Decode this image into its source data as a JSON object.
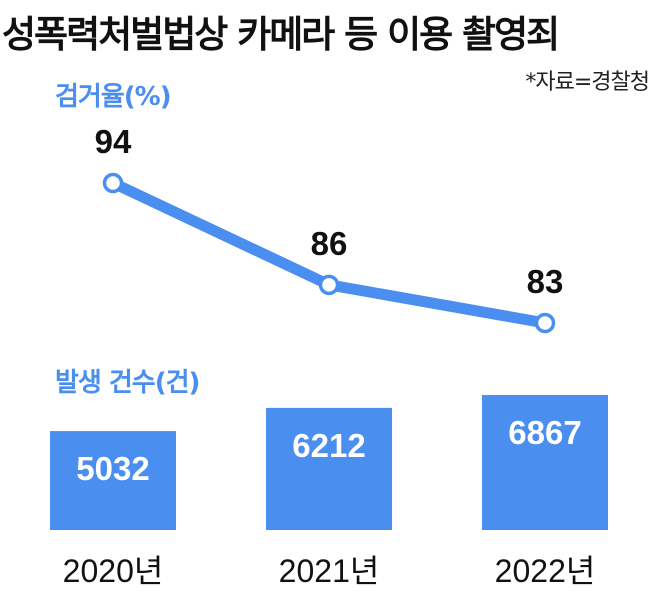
{
  "title": "성폭력처벌법상 카메라 등 이용 촬영죄",
  "source": "*자료=경찰청",
  "colors": {
    "accent": "#4a8ef0",
    "text": "#111111",
    "background": "#ffffff"
  },
  "chart_data": [
    {
      "type": "line",
      "title": "검거율(%)",
      "categories": [
        "2020년",
        "2021년",
        "2022년"
      ],
      "series": [
        {
          "values": [
            94,
            86,
            83
          ]
        }
      ],
      "data_labels": [
        "94",
        "86",
        "83"
      ],
      "grid": false
    },
    {
      "type": "bar",
      "title": "발생 건수(건)",
      "categories": [
        "2020년",
        "2021년",
        "2022년"
      ],
      "values": [
        5032,
        6212,
        6867
      ],
      "data_labels": [
        "5032",
        "6212",
        "6867"
      ],
      "grid": false
    }
  ]
}
